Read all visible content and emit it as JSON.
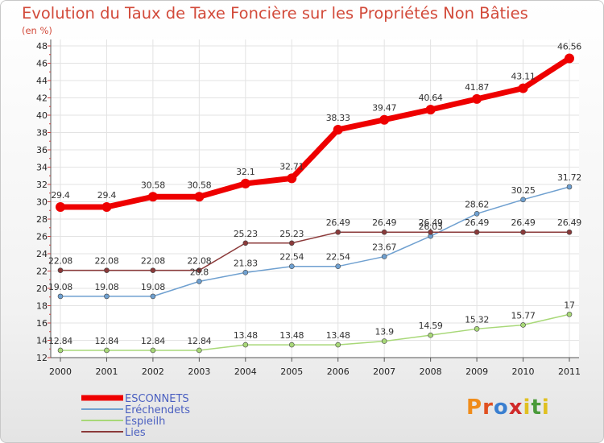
{
  "chart_data": {
    "type": "line",
    "title": "Evolution du Taux de Taxe Foncière sur les Propriétés Non Bâties",
    "subtitle": "(en %)",
    "x": [
      2000,
      2001,
      2002,
      2003,
      2004,
      2005,
      2006,
      2007,
      2008,
      2009,
      2010,
      2011
    ],
    "ylim": [
      12,
      48
    ],
    "yticks": [
      12,
      14,
      16,
      18,
      20,
      22,
      24,
      26,
      28,
      30,
      32,
      34,
      36,
      38,
      40,
      42,
      44,
      46,
      48
    ],
    "grid": true,
    "legend_position": "bottom-left",
    "series": [
      {
        "name": "ESCONNETS",
        "color": "#ee0000",
        "values": [
          29.4,
          29.4,
          30.58,
          30.58,
          32.1,
          32.71,
          38.33,
          39.47,
          40.64,
          41.87,
          43.11,
          46.56
        ],
        "labels": [
          "29.4",
          "29.4",
          "30.58",
          "30.58",
          "32.1",
          "32.71",
          "38.33",
          "39.47",
          "40.64",
          "41.87",
          "43.11",
          "46.56"
        ]
      },
      {
        "name": "Eréchendets",
        "color": "#6fa0d0",
        "values": [
          19.08,
          19.08,
          19.08,
          20.8,
          21.83,
          22.54,
          22.54,
          23.67,
          26.03,
          28.62,
          30.25,
          31.72
        ],
        "labels": [
          "19.08",
          "19.08",
          "19.08",
          "20.8",
          "21.83",
          "22.54",
          "22.54",
          "23.67",
          "26.03",
          "28.62",
          "30.25",
          "31.72"
        ]
      },
      {
        "name": "Espieilh",
        "color": "#a8d878",
        "values": [
          12.84,
          12.84,
          12.84,
          12.84,
          13.48,
          13.48,
          13.48,
          13.9,
          14.59,
          15.32,
          15.77,
          17
        ],
        "labels": [
          "12.84",
          "12.84",
          "12.84",
          "12.84",
          "13.48",
          "13.48",
          "13.48",
          "13.9",
          "14.59",
          "15.32",
          "15.77",
          "17"
        ]
      },
      {
        "name": "Lies",
        "color": "#8b3a3a",
        "values": [
          22.08,
          22.08,
          22.08,
          22.08,
          25.23,
          25.23,
          26.49,
          26.49,
          26.49,
          26.49,
          26.49,
          26.49
        ],
        "labels": [
          "22.08",
          "22.08",
          "22.08",
          "22.08",
          "25.23",
          "25.23",
          "26.49",
          "26.49",
          "26.49",
          "26.49",
          "26.49",
          "26.49"
        ]
      }
    ]
  },
  "logo": {
    "letters": [
      "P",
      "r",
      "o",
      "x",
      "i",
      "t",
      "i"
    ]
  }
}
